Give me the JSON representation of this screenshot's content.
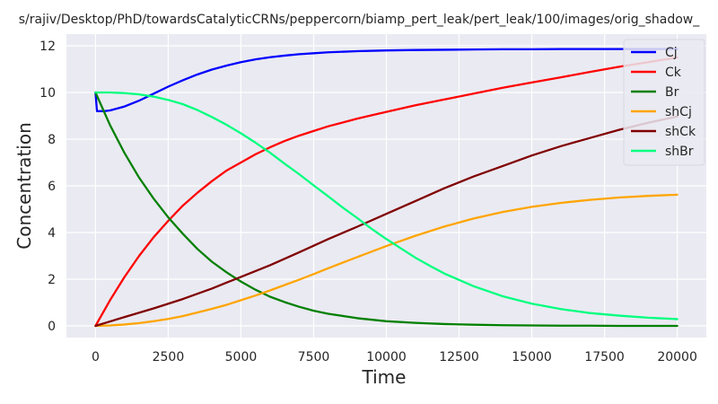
{
  "chart_data": {
    "type": "line",
    "title": "s/rajiv/Desktop/PhD/towardsCatalyticCRNs/peppercorn/biamp_pert_leak/pert_leak/100/images/orig_shadow_",
    "xlabel": "Time",
    "ylabel": "Concentration",
    "xlim": [
      -1000,
      21000
    ],
    "ylim": [
      -0.5,
      12.5
    ],
    "xticks": [
      0,
      2500,
      5000,
      7500,
      10000,
      12500,
      15000,
      17500,
      20000
    ],
    "yticks": [
      0,
      2,
      4,
      6,
      8,
      10,
      12
    ],
    "grid": true,
    "legend_position": "top-right",
    "background_color": "#eaeaf2",
    "series": [
      {
        "name": "Cj",
        "color": "#0000ff",
        "x": [
          0,
          50,
          300,
          500,
          1000,
          1500,
          2000,
          2500,
          3000,
          3500,
          4000,
          4500,
          5000,
          5500,
          6000,
          6500,
          7000,
          7500,
          8000,
          9000,
          10000,
          11000,
          12000,
          13000,
          14000,
          15000,
          16000,
          17000,
          18000,
          19000,
          20000
        ],
        "y": [
          10.0,
          9.2,
          9.2,
          9.23,
          9.4,
          9.65,
          9.95,
          10.25,
          10.52,
          10.77,
          10.98,
          11.15,
          11.3,
          11.42,
          11.51,
          11.58,
          11.64,
          11.68,
          11.72,
          11.77,
          11.8,
          11.82,
          11.83,
          11.84,
          11.85,
          11.85,
          11.86,
          11.86,
          11.86,
          11.86,
          11.86
        ]
      },
      {
        "name": "Ck",
        "color": "#ff0000",
        "x": [
          0,
          500,
          1000,
          1500,
          2000,
          2500,
          3000,
          3500,
          4000,
          4500,
          5000,
          5500,
          6000,
          6500,
          7000,
          7500,
          8000,
          9000,
          10000,
          11000,
          12000,
          13000,
          14000,
          15000,
          16000,
          17000,
          18000,
          19000,
          20000
        ],
        "y": [
          0,
          1.1,
          2.1,
          3.0,
          3.8,
          4.5,
          5.15,
          5.7,
          6.2,
          6.65,
          7.0,
          7.35,
          7.65,
          7.92,
          8.15,
          8.35,
          8.55,
          8.88,
          9.17,
          9.45,
          9.7,
          9.95,
          10.2,
          10.43,
          10.65,
          10.88,
          11.1,
          11.3,
          11.5
        ]
      },
      {
        "name": "Br",
        "color": "#008000",
        "x": [
          0,
          500,
          1000,
          1500,
          2000,
          2500,
          3000,
          3500,
          4000,
          4500,
          5000,
          5500,
          6000,
          6500,
          7000,
          7500,
          8000,
          9000,
          10000,
          11000,
          12000,
          13000,
          14000,
          15000,
          16000,
          17000,
          18000,
          19000,
          20000
        ],
        "y": [
          10.0,
          8.6,
          7.4,
          6.35,
          5.45,
          4.65,
          3.95,
          3.3,
          2.75,
          2.3,
          1.9,
          1.55,
          1.25,
          1.02,
          0.82,
          0.65,
          0.52,
          0.33,
          0.2,
          0.13,
          0.08,
          0.05,
          0.03,
          0.02,
          0.01,
          0.01,
          0.0,
          0.0,
          0.0
        ]
      },
      {
        "name": "shCj",
        "color": "#ffa500",
        "x": [
          0,
          500,
          1000,
          1500,
          2000,
          2500,
          3000,
          3500,
          4000,
          4500,
          5000,
          5500,
          6000,
          6500,
          7000,
          7500,
          8000,
          9000,
          10000,
          11000,
          12000,
          13000,
          14000,
          15000,
          16000,
          17000,
          18000,
          19000,
          20000
        ],
        "y": [
          0,
          0.02,
          0.06,
          0.12,
          0.2,
          0.3,
          0.42,
          0.57,
          0.73,
          0.9,
          1.1,
          1.3,
          1.52,
          1.75,
          1.98,
          2.22,
          2.47,
          2.95,
          3.42,
          3.86,
          4.26,
          4.6,
          4.88,
          5.1,
          5.27,
          5.4,
          5.5,
          5.57,
          5.62
        ]
      },
      {
        "name": "shCk",
        "color": "#800000",
        "x": [
          0,
          1000,
          2000,
          3000,
          4000,
          5000,
          6000,
          7000,
          8000,
          9000,
          10000,
          11000,
          12000,
          13000,
          14000,
          15000,
          16000,
          17000,
          18000,
          19000,
          20000
        ],
        "y": [
          0,
          0.38,
          0.75,
          1.15,
          1.6,
          2.1,
          2.6,
          3.15,
          3.72,
          4.25,
          4.8,
          5.35,
          5.9,
          6.4,
          6.85,
          7.3,
          7.7,
          8.05,
          8.4,
          8.7,
          8.97
        ]
      },
      {
        "name": "shBr",
        "color": "#00ff7f",
        "x": [
          0,
          500,
          1000,
          1500,
          2000,
          2500,
          3000,
          3500,
          4000,
          4500,
          5000,
          5500,
          6000,
          6500,
          7000,
          7500,
          8000,
          8500,
          9000,
          9500,
          10000,
          10500,
          11000,
          11500,
          12000,
          13000,
          14000,
          15000,
          16000,
          17000,
          18000,
          19000,
          20000
        ],
        "y": [
          10.0,
          10.0,
          9.97,
          9.92,
          9.82,
          9.68,
          9.5,
          9.25,
          8.95,
          8.62,
          8.25,
          7.85,
          7.42,
          6.95,
          6.5,
          6.02,
          5.55,
          5.07,
          4.62,
          4.15,
          3.72,
          3.32,
          2.92,
          2.57,
          2.24,
          1.7,
          1.27,
          0.95,
          0.72,
          0.55,
          0.44,
          0.35,
          0.29
        ]
      }
    ]
  }
}
